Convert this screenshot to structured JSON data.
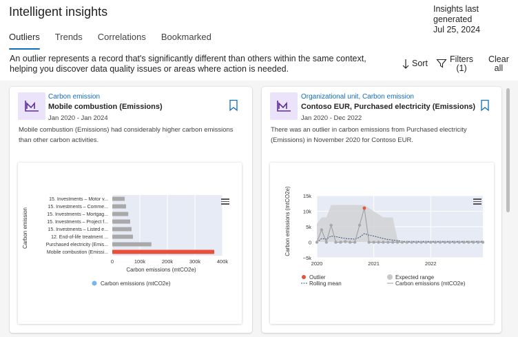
{
  "header": {
    "title": "Intelligent insights",
    "last_generated_label": "Insights last generated",
    "last_generated_date": "Jul 25, 2024"
  },
  "tabs": [
    {
      "label": "Outliers",
      "active": true
    },
    {
      "label": "Trends",
      "active": false
    },
    {
      "label": "Correlations",
      "active": false
    },
    {
      "label": "Bookmarked",
      "active": false
    }
  ],
  "description": "An outlier represents a record that's significantly different than others within the same context, helping you discover data quality issues or areas where action is needed.",
  "toolbar": {
    "sort_label": "Sort",
    "filters_label": "Filters",
    "filters_count": "(1)",
    "clear_label_1": "Clear",
    "clear_label_2": "all"
  },
  "cards": [
    {
      "category": "Carbon emission",
      "title": "Mobile combustion (Emissions)",
      "date_range": "Jan 2020 - Jan 2024",
      "description": "Mobile combustion (Emissions) had considerably higher carbon emissions than other carbon activities.",
      "legend_label": "Carbon emissions (mtCO2e)"
    },
    {
      "category": "Organizational unit, Carbon emission",
      "title": "Contoso EUR, Purchased electricity (Emissions)",
      "date_range": "Jan 2020 - Dec 2022",
      "description": "There was an outlier in carbon emissions from Purchased electricity (Emissions) in November 2020 for Contoso EUR.",
      "legend": {
        "outlier": "Outlier",
        "expected_range": "Expected range",
        "rolling_mean": "Rolling mean",
        "series": "Carbon emissions (mtCO2e)"
      }
    }
  ],
  "colors": {
    "accent": "#0f6cbd",
    "outlier": "#e8503a",
    "normal_bar": "#a9a9a9",
    "plot_bg": "#e6ebf5",
    "range_fill": "#cfcfcf",
    "legend_dot": "#7cb5ec",
    "icon_bg": "#ebe3fa",
    "icon_stroke": "#5c2e91"
  },
  "icons": {
    "card_icon": "chart-icon",
    "sort": "arrow-down-icon",
    "filters": "filter-icon",
    "bookmark": "bookmark-icon",
    "menu": "hamburger-menu-icon"
  },
  "chart_data": [
    {
      "type": "bar",
      "orientation": "horizontal",
      "categories": [
        "15. Investments – Motor v...",
        "15. Investments – Comme...",
        "15. Investments – Mortgag...",
        "15. Investments – Project f...",
        "15. Investments – Listed e...",
        "12. End-of-life treatment ...",
        "Purchased electricity (Emis...",
        "Mobile combustion (Emissi..."
      ],
      "series": [
        {
          "name": "Carbon emissions (mtCO2e)",
          "values": [
            45000,
            50000,
            58000,
            65000,
            70000,
            75000,
            142000,
            370000
          ]
        }
      ],
      "outlier_index": 7,
      "xlabel": "Carbon emissions (mtCO2e)",
      "ylabel": "Carbon emission",
      "xlim": [
        0,
        400000
      ],
      "xticks": [
        "0",
        "100k",
        "200k",
        "300k",
        "400k"
      ],
      "grid": true,
      "legend_position": "bottom"
    },
    {
      "type": "line",
      "x": [
        "2020-01",
        "2020-02",
        "2020-03",
        "2020-04",
        "2020-05",
        "2020-06",
        "2020-07",
        "2020-08",
        "2020-09",
        "2020-10",
        "2020-11",
        "2020-12",
        "2021-01",
        "2021-02",
        "2021-03",
        "2021-04",
        "2021-05",
        "2021-06",
        "2021-07",
        "2021-08",
        "2021-09",
        "2021-10",
        "2021-11",
        "2021-12",
        "2022-01",
        "2022-02",
        "2022-03",
        "2022-04",
        "2022-05",
        "2022-06",
        "2022-07",
        "2022-08",
        "2022-09",
        "2022-10",
        "2022-11",
        "2022-12"
      ],
      "series": [
        {
          "name": "Carbon emissions (mtCO2e)",
          "values": [
            0,
            4000,
            0,
            5500,
            0,
            0,
            200,
            0,
            0,
            5500,
            11000,
            0,
            0,
            0,
            0,
            0,
            0,
            0,
            0,
            0,
            0,
            0,
            0,
            0,
            0,
            0,
            0,
            0,
            0,
            0,
            0,
            0,
            0,
            0,
            0,
            0
          ]
        },
        {
          "name": "Rolling mean",
          "values": [
            0,
            1200,
            1000,
            2000,
            1800,
            1500,
            1200,
            1100,
            1000,
            1600,
            2800,
            2300,
            2000,
            1600,
            1200,
            900,
            700,
            500,
            300,
            300,
            300,
            300,
            300,
            300,
            300,
            300,
            300,
            300,
            300,
            300,
            300,
            300,
            300,
            300,
            300,
            300
          ]
        },
        {
          "name": "Expected range",
          "upper": [
            6000,
            8000,
            8000,
            12000,
            12000,
            12000,
            12000,
            12000,
            12000,
            12000,
            12000,
            11000,
            10000,
            9000,
            8000,
            8000,
            8000,
            1000,
            0,
            0,
            0,
            0,
            0,
            0,
            0,
            0,
            0,
            0,
            0,
            0,
            0,
            0,
            0,
            0,
            0,
            0
          ],
          "lower": [
            0,
            0,
            0,
            0,
            0,
            0,
            0,
            0,
            0,
            0,
            0,
            0,
            0,
            0,
            0,
            0,
            0,
            0,
            0,
            0,
            0,
            0,
            0,
            0,
            0,
            0,
            0,
            0,
            0,
            0,
            0,
            0,
            0,
            0,
            0,
            0
          ]
        }
      ],
      "outlier_point": {
        "x": "2020-11",
        "y": 11000
      },
      "ylabel": "Carbon emissions (mtCO2e)",
      "ylim": [
        -5000,
        15000
      ],
      "yticks": [
        "15k",
        "10k",
        "5k",
        "0",
        "−5k"
      ],
      "xticks": [
        "2020",
        "2021",
        "2022"
      ],
      "grid": true,
      "legend_position": "bottom"
    }
  ]
}
